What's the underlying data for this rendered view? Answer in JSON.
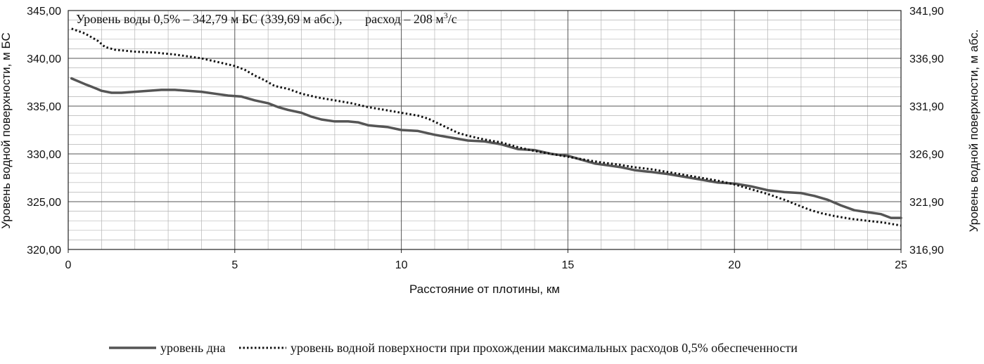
{
  "chart_data": {
    "type": "line",
    "annotation": {
      "text": "Уровень воды 0,5% – 342,79 м БС (339,69 м абс.),",
      "flow_label": "расход – 208 м",
      "flow_sup": "3",
      "flow_tail": "/с"
    },
    "xlabel": "Расстояние от плотины, км",
    "ylabel": "Уровень водной поверхности, м БС",
    "ylabel_right": "Уровень водной поверхности, м абс.",
    "xlim": [
      0,
      25
    ],
    "ylim": [
      320,
      345
    ],
    "ylim_right": [
      316.9,
      341.9
    ],
    "x_ticks": [
      "0",
      "5",
      "10",
      "15",
      "20",
      "25"
    ],
    "y_ticks": [
      "320,00",
      "325,00",
      "330,00",
      "335,00",
      "340,00",
      "345,00"
    ],
    "y_ticks_right": [
      "316,90",
      "321,90",
      "326,90",
      "331,90",
      "336,90",
      "341,90"
    ],
    "grid": true,
    "legend_position": "bottom",
    "series": [
      {
        "name": "уровень дна",
        "style": "solid",
        "color": "#555555",
        "x": [
          0.1,
          0.5,
          0.8,
          1.0,
          1.3,
          1.6,
          2.0,
          2.4,
          2.8,
          3.2,
          3.6,
          4.0,
          4.4,
          4.8,
          5.2,
          5.6,
          6.0,
          6.3,
          6.6,
          7.0,
          7.3,
          7.6,
          8.0,
          8.4,
          8.7,
          9.0,
          9.3,
          9.6,
          10.0,
          10.5,
          11.0,
          11.5,
          12.0,
          12.5,
          13.0,
          13.5,
          14.0,
          14.5,
          15.0,
          15.4,
          15.8,
          16.2,
          16.6,
          17.0,
          17.5,
          18.0,
          18.5,
          19.0,
          19.5,
          20.0,
          20.5,
          21.0,
          21.5,
          22.0,
          22.4,
          22.8,
          23.2,
          23.6,
          24.0,
          24.4,
          24.7,
          25.0
        ],
        "y": [
          337.9,
          337.3,
          336.9,
          336.6,
          336.4,
          336.4,
          336.5,
          336.6,
          336.7,
          336.7,
          336.6,
          336.5,
          336.3,
          336.1,
          336.0,
          335.6,
          335.3,
          334.9,
          334.6,
          334.3,
          333.9,
          333.6,
          333.4,
          333.4,
          333.3,
          333.0,
          332.9,
          332.8,
          332.5,
          332.4,
          332.0,
          331.7,
          331.4,
          331.3,
          331.0,
          330.5,
          330.4,
          330.0,
          329.8,
          329.4,
          329.0,
          328.8,
          328.6,
          328.3,
          328.1,
          327.9,
          327.6,
          327.3,
          327.0,
          326.9,
          326.6,
          326.2,
          326.0,
          325.9,
          325.6,
          325.2,
          324.6,
          324.1,
          323.9,
          323.7,
          323.3,
          323.3
        ]
      },
      {
        "name": "уровень водной поверхности при прохождении максимальных расходов 0,5% обеспеченности",
        "style": "dotted",
        "color": "#111111",
        "x": [
          0.1,
          0.5,
          0.9,
          1.1,
          1.4,
          2.0,
          2.6,
          3.2,
          3.6,
          4.0,
          4.5,
          5.0,
          5.3,
          5.6,
          5.9,
          6.2,
          6.6,
          7.0,
          7.5,
          8.0,
          8.5,
          9.0,
          9.5,
          10.0,
          10.5,
          10.8,
          11.1,
          11.4,
          11.7,
          12.0,
          12.5,
          13.0,
          13.5,
          14.0,
          14.5,
          15.0,
          15.5,
          16.0,
          16.5,
          17.0,
          17.5,
          18.0,
          18.5,
          19.0,
          19.5,
          20.0,
          20.5,
          21.0,
          21.5,
          22.0,
          22.3,
          22.6,
          23.0,
          23.5,
          24.0,
          24.5,
          25.0
        ],
        "y": [
          343.1,
          342.6,
          341.8,
          341.2,
          340.9,
          340.7,
          340.6,
          340.4,
          340.2,
          340.0,
          339.6,
          339.2,
          338.8,
          338.2,
          337.7,
          337.1,
          336.8,
          336.3,
          335.9,
          335.6,
          335.3,
          334.9,
          334.6,
          334.3,
          334.0,
          333.7,
          333.2,
          332.7,
          332.2,
          331.9,
          331.5,
          331.2,
          330.7,
          330.3,
          330.0,
          329.7,
          329.4,
          329.1,
          328.9,
          328.6,
          328.4,
          328.1,
          327.8,
          327.5,
          327.2,
          326.8,
          326.3,
          325.8,
          325.2,
          324.5,
          324.1,
          323.8,
          323.5,
          323.2,
          323.0,
          322.8,
          322.5
        ]
      }
    ]
  }
}
